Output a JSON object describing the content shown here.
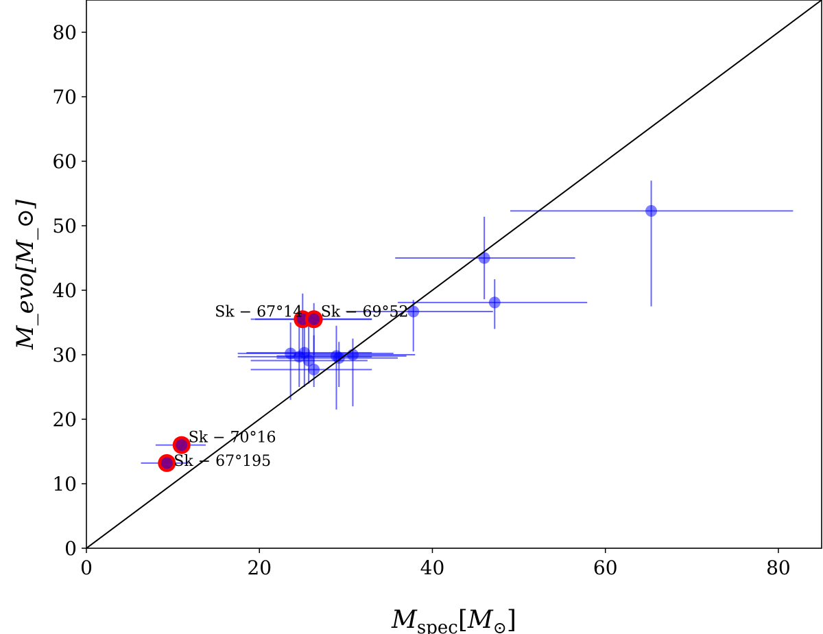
{
  "chart_data": {
    "type": "scatter",
    "xlabel": "M_spec[M_⊙]",
    "ylabel": "M_evo[M_⊙]",
    "xlabel_main": "M",
    "xlabel_sub": "spec",
    "xlabel_unit": "[M",
    "ylabel_main": "M",
    "ylabel_sub": "evo",
    "xlim": [
      0,
      85
    ],
    "ylim": [
      0,
      85
    ],
    "xticks": [
      0,
      20,
      40,
      60,
      80
    ],
    "yticks": [
      0,
      10,
      20,
      30,
      40,
      50,
      60,
      70,
      80
    ],
    "identity_line": true,
    "colors": {
      "points": "#0000ff",
      "highlight": "#ff0000",
      "line": "#000000"
    },
    "points": [
      {
        "x": 65.3,
        "y": 52.3,
        "xerr": [
          49,
          81.7
        ],
        "yerr": [
          37.5,
          57
        ]
      },
      {
        "x": 46.0,
        "y": 45.0,
        "xerr": [
          35.7,
          56.5
        ],
        "yerr": [
          38.6,
          51.4
        ]
      },
      {
        "x": 47.2,
        "y": 38.1,
        "xerr": [
          36,
          57.9
        ],
        "yerr": [
          34,
          41.7
        ]
      },
      {
        "x": 37.8,
        "y": 36.7,
        "xerr": [
          30,
          47
        ],
        "yerr": [
          30.5,
          38.5
        ]
      },
      {
        "x": 23.6,
        "y": 30.2,
        "xerr": [
          17.5,
          35.5
        ],
        "yerr": [
          23,
          35
        ]
      },
      {
        "x": 24.6,
        "y": 29.7,
        "xerr": [
          17.5,
          33
        ],
        "yerr": [
          25,
          35
        ]
      },
      {
        "x": 25.2,
        "y": 30.3,
        "xerr": [
          18.5,
          33
        ],
        "yerr": [
          25,
          35.5
        ]
      },
      {
        "x": 25.7,
        "y": 29.1,
        "xerr": [
          19,
          32.5
        ],
        "yerr": [
          25.5,
          35
        ]
      },
      {
        "x": 26.3,
        "y": 27.7,
        "xerr": [
          19,
          33
        ],
        "yerr": [
          25,
          33
        ]
      },
      {
        "x": 28.9,
        "y": 29.8,
        "xerr": [
          22,
          37
        ],
        "yerr": [
          21.5,
          34.5
        ]
      },
      {
        "x": 29.2,
        "y": 29.5,
        "xerr": [
          22,
          36
        ],
        "yerr": [
          25,
          32
        ]
      },
      {
        "x": 30.8,
        "y": 30.0,
        "xerr": [
          24,
          38
        ],
        "yerr": [
          22,
          32.5
        ]
      },
      {
        "x": 25.0,
        "y": 35.5,
        "xerr": [
          19,
          33
        ],
        "yerr": [
          30,
          39.5
        ],
        "highlight": true,
        "label": "Sk − 67°14"
      },
      {
        "x": 26.3,
        "y": 35.5,
        "xerr": [
          19.5,
          33
        ],
        "yerr": [
          30,
          38
        ],
        "highlight": true,
        "label": "Sk − 69°52"
      },
      {
        "x": 11.0,
        "y": 16.0,
        "xerr": [
          8,
          13.8
        ],
        "yerr": [
          15,
          17
        ],
        "highlight": true,
        "label": "Sk − 70°16"
      },
      {
        "x": 9.3,
        "y": 13.2,
        "xerr": [
          6.3,
          11.8
        ],
        "yerr": [
          12.2,
          14.2
        ],
        "highlight": true,
        "label": "Sk − 67°195"
      }
    ]
  }
}
